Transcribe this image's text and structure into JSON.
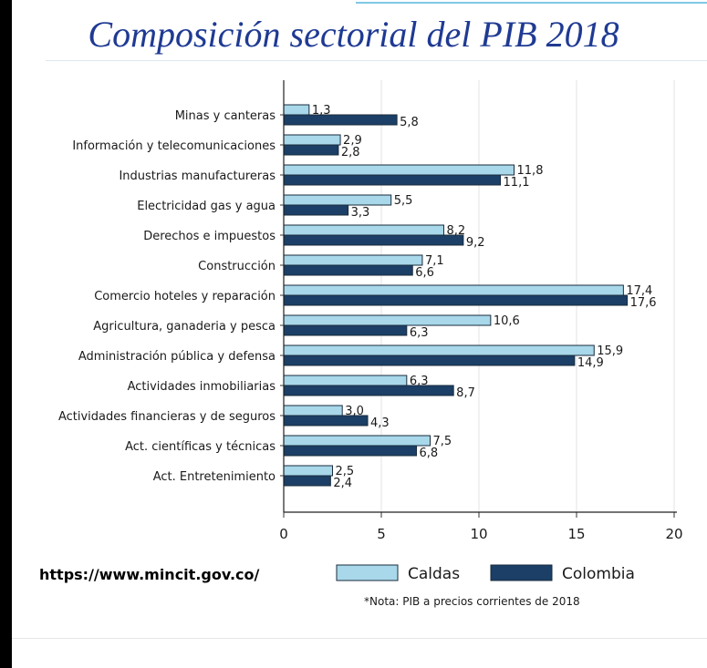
{
  "page": {
    "title": "Composición sectorial del PIB 2018",
    "source_url": "https://www.mincit.gov.co/"
  },
  "colors": {
    "caldas": "#a8d8ea",
    "colombia": "#1b3f66",
    "title": "#1f3a93",
    "grid": "#e3e3e3"
  },
  "chart_data": {
    "type": "bar",
    "orientation": "horizontal",
    "title": "Composición sectorial del PIB 2018",
    "categories": [
      "Minas y canteras",
      "Información y telecomunicaciones",
      "Industrias manufactureras",
      "Electricidad gas y agua",
      "Derechos e impuestos",
      "Construcción",
      "Comercio hoteles y reparación",
      "Agricultura, ganaderia y pesca",
      "Administración pública y defensa",
      "Actividades inmobiliarias",
      "Actividades financieras y de seguros",
      "Act. científicas y técnicas",
      "Act. Entretenimiento"
    ],
    "series": [
      {
        "name": "Caldas",
        "values": [
          1.3,
          2.9,
          11.8,
          5.5,
          8.2,
          7.1,
          17.4,
          10.6,
          15.9,
          6.3,
          3.0,
          7.5,
          2.5
        ],
        "labels": [
          "1,3",
          "2,9",
          "11,8",
          "5,5",
          "8,2",
          "7,1",
          "17,4",
          "10,6",
          "15,9",
          "6,3",
          "3,0",
          "7,5",
          "2,5"
        ]
      },
      {
        "name": "Colombia",
        "values": [
          5.8,
          2.8,
          11.1,
          3.3,
          9.2,
          6.6,
          17.6,
          6.3,
          14.9,
          8.7,
          4.3,
          6.8,
          2.4
        ],
        "labels": [
          "5,8",
          "2,8",
          "11,1",
          "3,3",
          "9,2",
          "6,6",
          "17,6",
          "6,3",
          "14,9",
          "8,7",
          "4,3",
          "6,8",
          "2,4"
        ]
      }
    ],
    "xlim": [
      0,
      20
    ],
    "xticks": [
      0,
      5,
      10,
      15,
      20
    ],
    "xlabel": "",
    "ylabel": "",
    "grid": true,
    "legend": {
      "entries": [
        "Caldas",
        "Colombia"
      ],
      "placement": "bottom"
    },
    "note": "*Nota: PIB a precios corrientes de 2018"
  }
}
